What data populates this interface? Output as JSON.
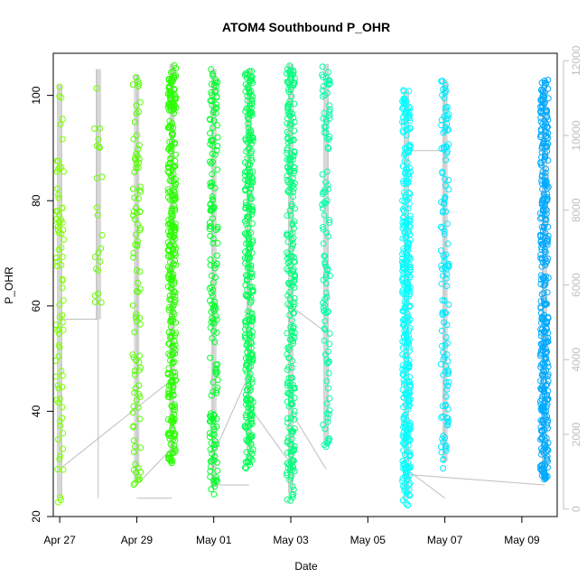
{
  "chart_data": {
    "type": "scatter",
    "title": "ATOM4 Southbound P_OHR",
    "xlabel": "Date",
    "ylabel": "P_OHR",
    "x_axis": {
      "type": "date",
      "range": [
        "2012-04-26T20:00",
        "2012-05-09T22:00"
      ],
      "ticks": [
        {
          "date": "2012-04-27",
          "label": "Apr 27"
        },
        {
          "date": "2012-04-29",
          "label": "Apr 29"
        },
        {
          "date": "2012-05-01",
          "label": "May 01"
        },
        {
          "date": "2012-05-03",
          "label": "May 03"
        },
        {
          "date": "2012-05-05",
          "label": "May 05"
        },
        {
          "date": "2012-05-07",
          "label": "May 07"
        },
        {
          "date": "2012-05-09",
          "label": "May 09"
        }
      ]
    },
    "y_axis": {
      "range": [
        20,
        108
      ],
      "ticks": [
        20,
        40,
        60,
        80,
        100
      ]
    },
    "y2_axis": {
      "range": [
        -200,
        12200
      ],
      "ticks": [
        0,
        2000,
        4000,
        6000,
        8000,
        10000,
        12000
      ],
      "color": "#bfbfbf"
    },
    "colors": {
      "track_line": "#bebebe",
      "marker_colors": [
        "#7FFF00",
        "#55FF00",
        "#2AFF00",
        "#00FF2A",
        "#00FF55",
        "#00FF7F",
        "#00FFAA",
        "#00FFD4",
        "#00FFFF",
        "#00D4FF",
        "#00AAFF"
      ]
    },
    "profiles": [
      {
        "date": "2012-04-27T00:00",
        "ymin": 22,
        "ymax": 102,
        "color": "#7FFF00",
        "n": 80
      },
      {
        "date": "2012-04-28T00:00",
        "ymin": 56,
        "ymax": 105,
        "color": "#6AFF00",
        "n": 22
      },
      {
        "date": "2012-04-29T00:00",
        "ymin": 25,
        "ymax": 104,
        "color": "#55FF00",
        "n": 95
      },
      {
        "date": "2012-04-29T22:00",
        "ymin": 30,
        "ymax": 106,
        "color": "#2AFF00",
        "n": 320
      },
      {
        "date": "2012-05-01T00:00",
        "ymin": 24,
        "ymax": 105,
        "color": "#00FF2A",
        "n": 170
      },
      {
        "date": "2012-05-01T22:00",
        "ymin": 29,
        "ymax": 105,
        "color": "#00FF55",
        "n": 300
      },
      {
        "date": "2012-05-03T00:00",
        "ymin": 23,
        "ymax": 106,
        "color": "#00FF7F",
        "n": 260
      },
      {
        "date": "2012-05-03T22:00",
        "ymin": 32,
        "ymax": 106,
        "color": "#00FFAA",
        "n": 110
      },
      {
        "date": "2012-05-06T00:00",
        "ymin": 22,
        "ymax": 101,
        "color": "#00FFFF",
        "n": 360
      },
      {
        "date": "2012-05-07T00:00",
        "ymin": 29,
        "ymax": 103,
        "color": "#00EAFF",
        "n": 130
      },
      {
        "date": "2012-05-09T14:00",
        "ymin": 27,
        "ymax": 103,
        "color": "#00AAFF",
        "n": 380
      }
    ],
    "track_segments": [
      [
        [
          "2012-04-27T00:00",
          29
        ],
        [
          "2012-04-29T22:00",
          46
        ]
      ],
      [
        [
          "2012-04-27T00:00",
          57.5
        ],
        [
          "2012-04-28T00:00",
          57.5
        ]
      ],
      [
        [
          "2012-04-28T00:00",
          57.5
        ],
        [
          "2012-04-28T00:00",
          23.5
        ]
      ],
      [
        [
          "2012-04-29T00:00",
          26
        ],
        [
          "2012-04-29T22:00",
          33
        ]
      ],
      [
        [
          "2012-04-29T00:00",
          23.5
        ],
        [
          "2012-04-29T22:00",
          23.5
        ]
      ],
      [
        [
          "2012-05-01T00:00",
          26
        ],
        [
          "2012-05-01T22:00",
          26
        ]
      ],
      [
        [
          "2012-05-01T00:00",
          32
        ],
        [
          "2012-05-01T22:00",
          47
        ]
      ],
      [
        [
          "2012-05-01T22:00",
          41
        ],
        [
          "2012-05-03T00:00",
          30
        ]
      ],
      [
        [
          "2012-05-03T00:00",
          60
        ],
        [
          "2012-05-03T22:00",
          55
        ]
      ],
      [
        [
          "2012-05-03T00:00",
          40
        ],
        [
          "2012-05-03T22:00",
          29
        ]
      ],
      [
        [
          "2012-05-06T00:00",
          29
        ],
        [
          "2012-05-07T00:00",
          23.5
        ]
      ],
      [
        [
          "2012-05-06T00:00",
          89.5
        ],
        [
          "2012-05-07T00:00",
          89.5
        ]
      ],
      [
        [
          "2012-05-06T00:00",
          28
        ],
        [
          "2012-05-09T14:00",
          26
        ]
      ]
    ],
    "grid": false,
    "legend": "none"
  }
}
